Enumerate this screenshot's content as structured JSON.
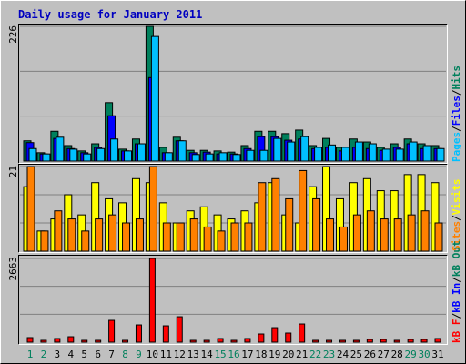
{
  "chart_data": [
    {
      "type": "bar",
      "title": "Daily usage for January 2011",
      "categories": [
        "1",
        "2",
        "3",
        "4",
        "5",
        "6",
        "7",
        "8",
        "9",
        "10",
        "11",
        "12",
        "13",
        "14",
        "15",
        "16",
        "17",
        "18",
        "19",
        "20",
        "21",
        "22",
        "23",
        "24",
        "25",
        "26",
        "27",
        "28",
        "29",
        "30",
        "31"
      ],
      "ylim": [
        0,
        226
      ],
      "yticks": [
        226
      ],
      "legend_separator": "/",
      "series": [
        {
          "name": "Pages",
          "color": "#00c0ff",
          "values": [
            21,
            12,
            40,
            20,
            12,
            21,
            37,
            17,
            29,
            209,
            14,
            34,
            11,
            12,
            14,
            11,
            18,
            18,
            38,
            32,
            41,
            23,
            27,
            23,
            32,
            29,
            20,
            20,
            32,
            26,
            21
          ]
        },
        {
          "name": "Files",
          "color": "#0000ff",
          "values": [
            31,
            12,
            38,
            21,
            14,
            23,
            76,
            17,
            29,
            140,
            14,
            34,
            14,
            15,
            12,
            12,
            21,
            41,
            41,
            35,
            37,
            21,
            23,
            17,
            23,
            21,
            18,
            23,
            29,
            21,
            21
          ]
        },
        {
          "name": "Hits",
          "color": "#00805c",
          "values": [
            34,
            14,
            50,
            26,
            17,
            29,
            98,
            20,
            37,
            226,
            23,
            40,
            18,
            18,
            17,
            15,
            26,
            50,
            50,
            46,
            52,
            26,
            38,
            23,
            37,
            32,
            23,
            29,
            37,
            29,
            26
          ]
        }
      ]
    },
    {
      "type": "bar",
      "categories": [
        "1",
        "2",
        "3",
        "4",
        "5",
        "6",
        "7",
        "8",
        "9",
        "10",
        "11",
        "12",
        "13",
        "14",
        "15",
        "16",
        "17",
        "18",
        "19",
        "20",
        "21",
        "22",
        "23",
        "24",
        "25",
        "26",
        "27",
        "28",
        "29",
        "30",
        "31"
      ],
      "ylim": [
        0,
        21
      ],
      "yticks": [
        21
      ],
      "legend_separator": "/",
      "series": [
        {
          "name": "Sites",
          "color": "#ff8000",
          "values": [
            21,
            5,
            10,
            8,
            5,
            8,
            9,
            7,
            8,
            21,
            7,
            7,
            8,
            6,
            5,
            7,
            7,
            17,
            18,
            13,
            20,
            13,
            8,
            6,
            9,
            10,
            8,
            8,
            9,
            10,
            7
          ]
        },
        {
          "name": "Visits",
          "color": "#ffff00",
          "values": [
            16,
            5,
            8,
            14,
            9,
            17,
            13,
            12,
            18,
            17,
            12,
            7,
            10,
            11,
            9,
            8,
            10,
            12,
            17,
            9,
            7,
            16,
            21,
            13,
            17,
            18,
            15,
            15,
            19,
            19,
            17
          ]
        }
      ]
    },
    {
      "type": "bar",
      "categories": [
        "1",
        "2",
        "3",
        "4",
        "5",
        "6",
        "7",
        "8",
        "9",
        "10",
        "11",
        "12",
        "13",
        "14",
        "15",
        "16",
        "17",
        "18",
        "19",
        "20",
        "21",
        "22",
        "23",
        "24",
        "25",
        "26",
        "27",
        "28",
        "29",
        "30",
        "31"
      ],
      "category_colors": [
        "#00805c",
        "#00805c",
        "#000000",
        "#000000",
        "#000000",
        "#000000",
        "#000000",
        "#00805c",
        "#00805c",
        "#000000",
        "#000000",
        "#000000",
        "#000000",
        "#000000",
        "#00805c",
        "#00805c",
        "#000000",
        "#000000",
        "#000000",
        "#000000",
        "#000000",
        "#00805c",
        "#00805c",
        "#000000",
        "#000000",
        "#000000",
        "#000000",
        "#000000",
        "#00805c",
        "#00805c",
        "#000000"
      ],
      "ylim": [
        0,
        2663
      ],
      "yticks": [
        2663
      ],
      "legend_separator": "/",
      "series": [
        {
          "name": "kB F",
          "color": "#ff0000",
          "values": [
            145,
            58,
            116,
            173,
            58,
            58,
            694,
            58,
            549,
            2663,
            520,
            809,
            58,
            58,
            116,
            58,
            116,
            260,
            462,
            289,
            578,
            58,
            58,
            58,
            58,
            87,
            87,
            58,
            87,
            87,
            116
          ]
        }
      ],
      "legend_extra": [
        {
          "name": "kB In",
          "color": "#0000ff"
        },
        {
          "name": "kB Out",
          "color": "#00805c"
        }
      ]
    }
  ]
}
